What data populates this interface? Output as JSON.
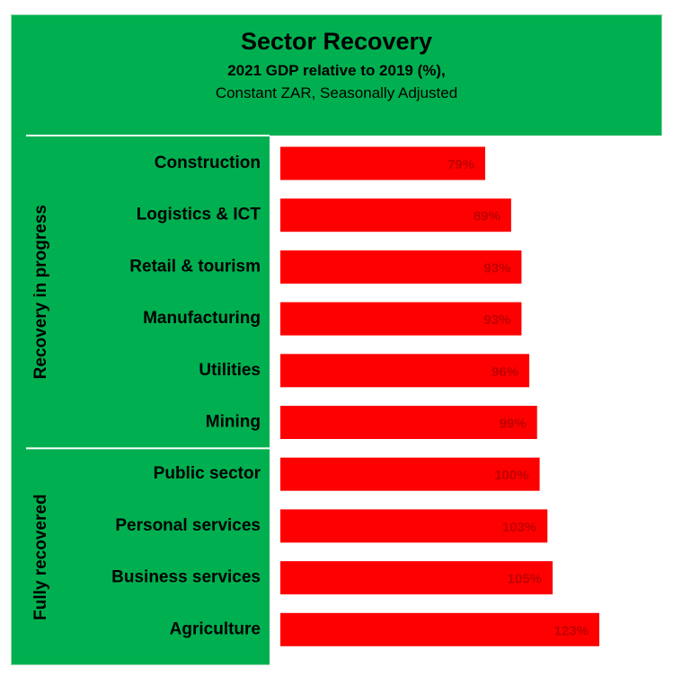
{
  "chart_data": {
    "type": "bar",
    "orientation": "horizontal",
    "title": "Sector Recovery",
    "subtitle": "2021 GDP relative to 2019 (%),",
    "subtitle2": "Constant ZAR, Seasonally Adjusted",
    "categories": [
      "Construction",
      "Logistics & ICT",
      "Retail & tourism",
      "Manufacturing",
      "Utilities",
      "Mining",
      "Public sector",
      "Personal services",
      "Business services",
      "Agriculture"
    ],
    "values": [
      79,
      89,
      93,
      93,
      96,
      99,
      100,
      103,
      105,
      123
    ],
    "data_labels": [
      "79%",
      "89%",
      "93%",
      "93%",
      "96%",
      "99%",
      "100%",
      "103%",
      "105%",
      "123%"
    ],
    "groups": [
      {
        "label": "Recovery in progress",
        "count": 6
      },
      {
        "label": "Fully recovered",
        "count": 4
      }
    ],
    "xlim": [
      0,
      150
    ],
    "bar_color": "#ff0000",
    "background_color": "#00b050",
    "plot_background": "#ffffff",
    "label_color": "#c00000",
    "grid": false
  }
}
